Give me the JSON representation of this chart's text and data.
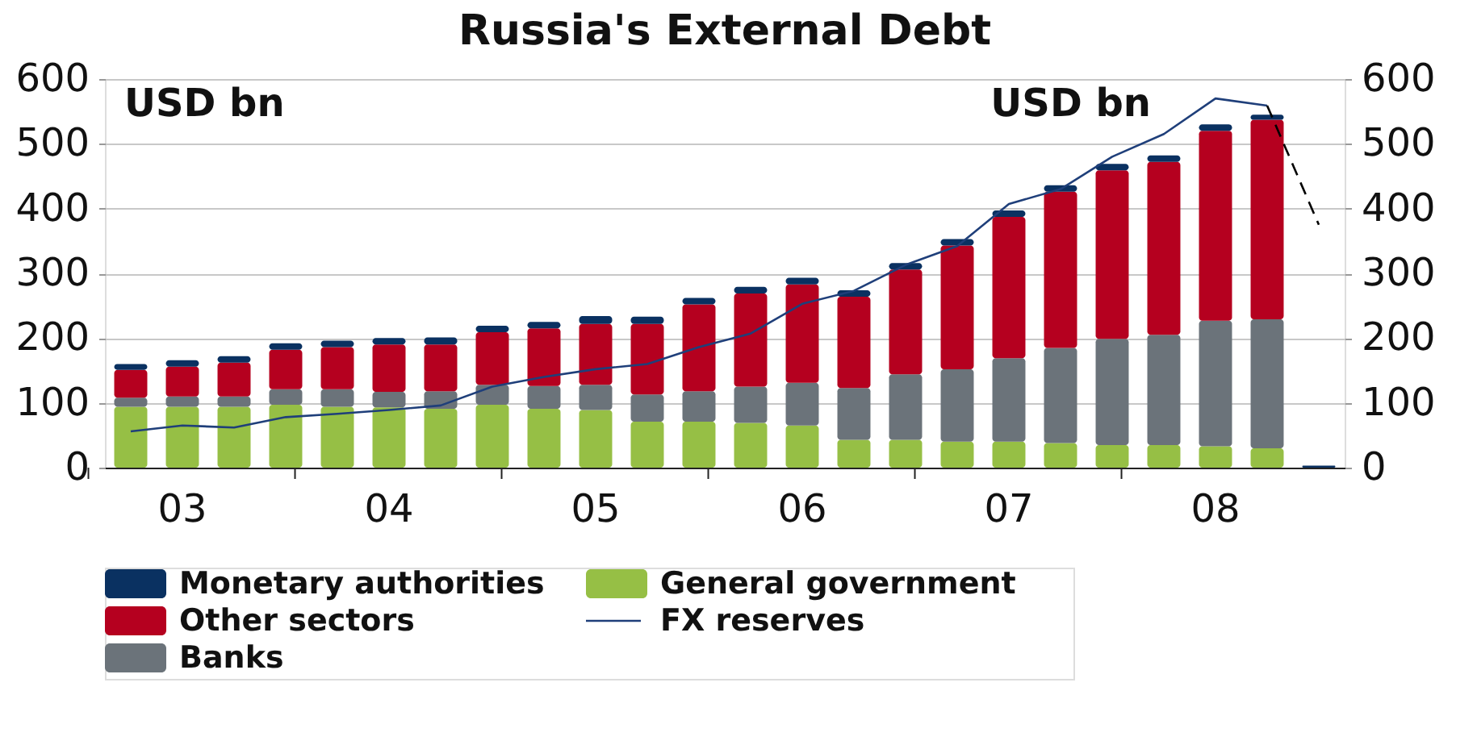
{
  "chart_data": {
    "type": "bar",
    "title": "Russia's External Debt",
    "ylabel": "USD bn",
    "y2label": "USD bn",
    "categories": [
      null,
      "03",
      null,
      null,
      null,
      "04",
      null,
      null,
      null,
      "05",
      null,
      null,
      null,
      "06",
      null,
      null,
      null,
      "07",
      null,
      null,
      null,
      "08",
      null,
      null
    ],
    "stacked": true,
    "ylim": [
      0,
      600
    ],
    "yticks": [
      0,
      100,
      200,
      300,
      400,
      500,
      600
    ],
    "y2lim": [
      0,
      600
    ],
    "y2ticks": [
      0,
      100,
      200,
      300,
      400,
      500,
      600
    ],
    "grid": "y",
    "legend": "bottom",
    "series": [
      {
        "name": "General government",
        "color": "#96bf45",
        "values": [
          94,
          94,
          94,
          97,
          94,
          93,
          91,
          97,
          91,
          89,
          71,
          71,
          69,
          65,
          43,
          43,
          40,
          40,
          38,
          35,
          35,
          33,
          30,
          0
        ]
      },
      {
        "name": "Banks",
        "color": "#6b737a",
        "values": [
          14,
          16,
          16,
          24,
          27,
          24,
          27,
          31,
          35,
          39,
          42,
          47,
          56,
          66,
          80,
          101,
          112,
          129,
          147,
          164,
          170,
          194,
          199,
          0
        ]
      },
      {
        "name": "Other sectors",
        "color": "#b5001f",
        "values": [
          43,
          46,
          52,
          61,
          65,
          73,
          72,
          81,
          89,
          94,
          109,
          134,
          144,
          152,
          141,
          162,
          191,
          218,
          241,
          260,
          267,
          293,
          308,
          0
        ]
      },
      {
        "name": "Monetary authorities",
        "color": "#0a3161",
        "values": [
          9,
          10,
          10,
          10,
          10,
          10,
          11,
          10,
          10,
          12,
          11,
          10,
          10,
          10,
          10,
          10,
          10,
          10,
          10,
          10,
          10,
          10,
          8,
          3
        ]
      },
      {
        "name": "FX reserves",
        "type": "line",
        "axis": "y2",
        "color": "#1f3f7a",
        "line_style": "solid",
        "values": [
          56,
          65,
          62,
          78,
          83,
          89,
          96,
          125,
          140,
          152,
          160,
          186,
          207,
          253,
          273,
          313,
          342,
          407,
          430,
          480,
          515,
          570,
          559,
          null
        ]
      },
      {
        "type": "line",
        "axis": "y2",
        "color": "#000000",
        "line_style": "dashed",
        "values": [
          null,
          null,
          null,
          null,
          null,
          null,
          null,
          null,
          null,
          null,
          null,
          null,
          null,
          null,
          null,
          null,
          null,
          null,
          null,
          null,
          null,
          null,
          559,
          375
        ]
      }
    ]
  }
}
